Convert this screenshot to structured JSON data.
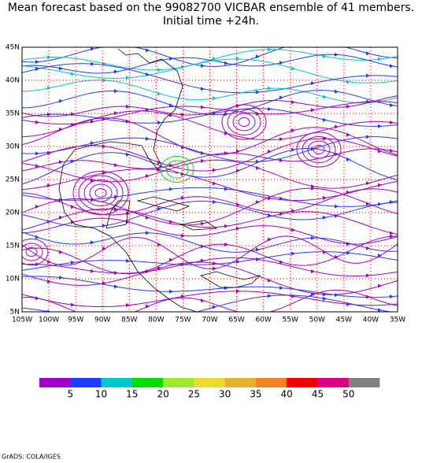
{
  "header": {
    "title": "Mean forecast based on the 99082700 VICBAR ensemble of 41 members.",
    "subtitle": "Initial time +24h."
  },
  "map": {
    "lon_labels": [
      "105W",
      "100W",
      "95W",
      "90W",
      "85W",
      "80W",
      "75W",
      "70W",
      "65W",
      "60W",
      "55W",
      "50W",
      "45W",
      "40W",
      "35W"
    ],
    "lat_labels": [
      "5N",
      "10N",
      "15N",
      "20N",
      "25N",
      "30N",
      "35N",
      "40N",
      "45N"
    ]
  },
  "colorbar": {
    "colors": [
      "#a000c8",
      "#1e3cff",
      "#00c8c8",
      "#00dc00",
      "#a0e632",
      "#e6dc32",
      "#e6af2d",
      "#f08228",
      "#f00000",
      "#dc0082",
      "#808080"
    ],
    "labels": [
      5,
      10,
      15,
      20,
      25,
      30,
      35,
      40,
      45,
      50
    ]
  },
  "footer": {
    "credit": "GrADS: COLA/IGES"
  }
}
